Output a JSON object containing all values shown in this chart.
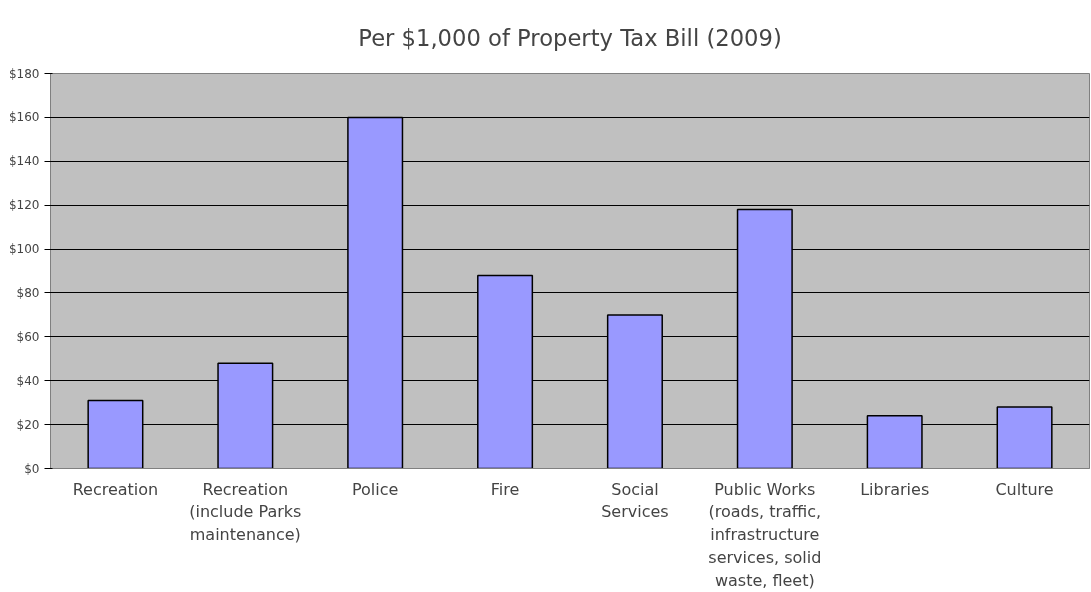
{
  "chart_data": {
    "type": "bar",
    "title": "Per $1,000 of Property Tax Bill (2009)",
    "categories": [
      "Recreation",
      "Recreation\n(include Parks\nmaintenance)",
      "Police",
      "Fire",
      "Social\nServices",
      "Public Works\n(roads, traffic,\ninfrastructure\nservices, solid\nwaste, fleet)",
      "Libraries",
      "Culture"
    ],
    "values": [
      31,
      48,
      160,
      88,
      70,
      118,
      24,
      28
    ],
    "color": "#9999ff",
    "ylim": [
      0,
      180
    ],
    "yticks": [
      {
        "value": 0,
        "label": "$0"
      },
      {
        "value": 20,
        "label": "$20"
      },
      {
        "value": 40,
        "label": "$40"
      },
      {
        "value": 60,
        "label": "$60"
      },
      {
        "value": 80,
        "label": "$80"
      },
      {
        "value": 100,
        "label": "$100"
      },
      {
        "value": 120,
        "label": "$120"
      },
      {
        "value": 140,
        "label": "$140"
      },
      {
        "value": 160,
        "label": "$160"
      },
      {
        "value": 180,
        "label": "$180"
      }
    ],
    "grid": "y"
  }
}
